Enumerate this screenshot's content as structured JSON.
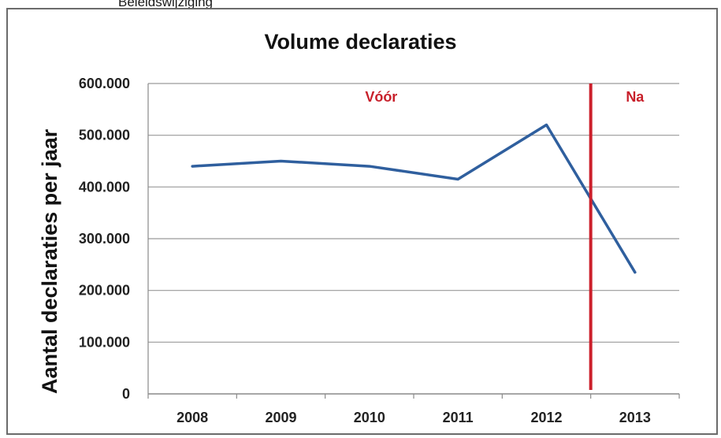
{
  "page": {
    "cut_heading": "Beleidswijziging"
  },
  "chart_data": {
    "type": "line",
    "title": "Volume declaraties",
    "xlabel": "",
    "ylabel": "Aantal declaraties per jaar",
    "categories": [
      "2008",
      "2009",
      "2010",
      "2011",
      "2012",
      "2013"
    ],
    "series": [
      {
        "values": [
          440000,
          450000,
          440000,
          415000,
          520000,
          235000
        ],
        "color": "#2f5f9e"
      }
    ],
    "ylim": [
      0,
      600000
    ],
    "yticks": [
      0,
      100000,
      200000,
      300000,
      400000,
      500000,
      600000
    ],
    "ytick_labels": [
      "0",
      "100.000",
      "200.000",
      "300.000",
      "400.000",
      "500.000",
      "600.000"
    ],
    "grid": true,
    "annotations": {
      "before_label": "Vóór",
      "after_label": "Na",
      "divider_between": [
        "2012",
        "2013"
      ],
      "divider_color": "#cc1f2b"
    }
  }
}
